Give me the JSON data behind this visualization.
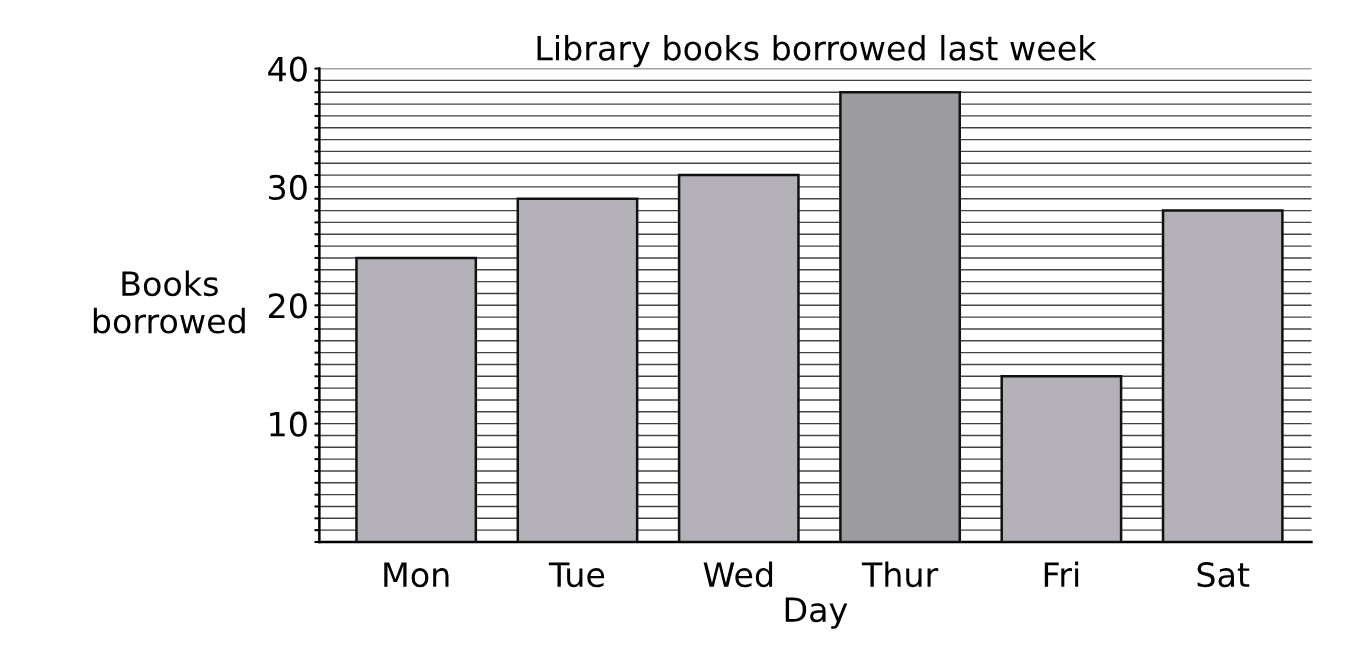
{
  "chart_data": {
    "type": "bar",
    "title": "Library books borrowed last week",
    "xlabel": "Day",
    "ylabel": "Books\nborrowed",
    "categories": [
      "Mon",
      "Tue",
      "Wed",
      "Thur",
      "Fri",
      "Sat"
    ],
    "values": [
      24,
      29,
      31,
      38,
      14,
      28
    ],
    "colors": [
      "#b4b2b8",
      "#b4b2b8",
      "#b4b2b8",
      "#9c9ba0",
      "#b4b2b8",
      "#b4b2b8"
    ],
    "ylim": [
      0,
      40
    ],
    "yticks": [
      {
        "value": 0,
        "label": null
      },
      {
        "value": 1,
        "label": null
      },
      {
        "value": 2,
        "label": null
      },
      {
        "value": 3,
        "label": null
      },
      {
        "value": 4,
        "label": null
      },
      {
        "value": 5,
        "label": null
      },
      {
        "value": 6,
        "label": null
      },
      {
        "value": 7,
        "label": null
      },
      {
        "value": 8,
        "label": null
      },
      {
        "value": 9,
        "label": null
      },
      10,
      {
        "value": 11,
        "label": null
      },
      {
        "value": 12,
        "label": null
      },
      {
        "value": 13,
        "label": null
      },
      {
        "value": 14,
        "label": null
      },
      {
        "value": 15,
        "label": null
      },
      {
        "value": 16,
        "label": null
      },
      {
        "value": 17,
        "label": null
      },
      {
        "value": 18,
        "label": null
      },
      {
        "value": 19,
        "label": null
      },
      20,
      {
        "value": 21,
        "label": null
      },
      {
        "value": 22,
        "label": null
      },
      {
        "value": 23,
        "label": null
      },
      {
        "value": 24,
        "label": null
      },
      {
        "value": 25,
        "label": null
      },
      {
        "value": 26,
        "label": null
      },
      {
        "value": 27,
        "label": null
      },
      {
        "value": 28,
        "label": null
      },
      {
        "value": 29,
        "label": null
      },
      30,
      {
        "value": 31,
        "label": null
      },
      {
        "value": 32,
        "label": null
      },
      {
        "value": 33,
        "label": null
      },
      {
        "value": 34,
        "label": null
      },
      {
        "value": 35,
        "label": null
      },
      {
        "value": 36,
        "label": null
      },
      {
        "value": 37,
        "label": null
      },
      {
        "value": 38,
        "label": null
      },
      {
        "value": 39,
        "label": null
      },
      40
    ],
    "grid": "y"
  }
}
